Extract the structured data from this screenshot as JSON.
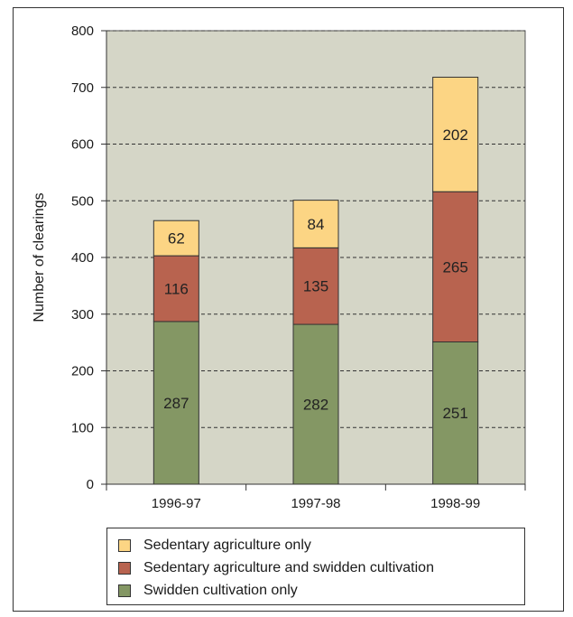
{
  "chart_data": {
    "type": "bar",
    "stacked": true,
    "categories": [
      "1996-97",
      "1997-98",
      "1998-99"
    ],
    "series": [
      {
        "name": "Swidden cultivation only",
        "values": [
          287,
          282,
          251
        ],
        "color": "#849764"
      },
      {
        "name": "Sedentary agriculture and swidden cultivation",
        "values": [
          116,
          135,
          265
        ],
        "color": "#b8634f"
      },
      {
        "name": "Sedentary agriculture only",
        "values": [
          62,
          84,
          202
        ],
        "color": "#fcd584"
      }
    ],
    "ylabel": "Number of clearings",
    "xlabel": "",
    "ylim": [
      0,
      800
    ],
    "yticks": [
      0,
      100,
      200,
      300,
      400,
      500,
      600,
      700,
      800
    ],
    "grid": true,
    "legend_position": "bottom",
    "plot_background": "#d5d6c7"
  },
  "legend": {
    "items": [
      {
        "label": "Sedentary agriculture only",
        "color": "#fcd584"
      },
      {
        "label": "Sedentary agriculture and swidden cultivation",
        "color": "#b8634f"
      },
      {
        "label": "Swidden cultivation only",
        "color": "#849764"
      }
    ]
  }
}
